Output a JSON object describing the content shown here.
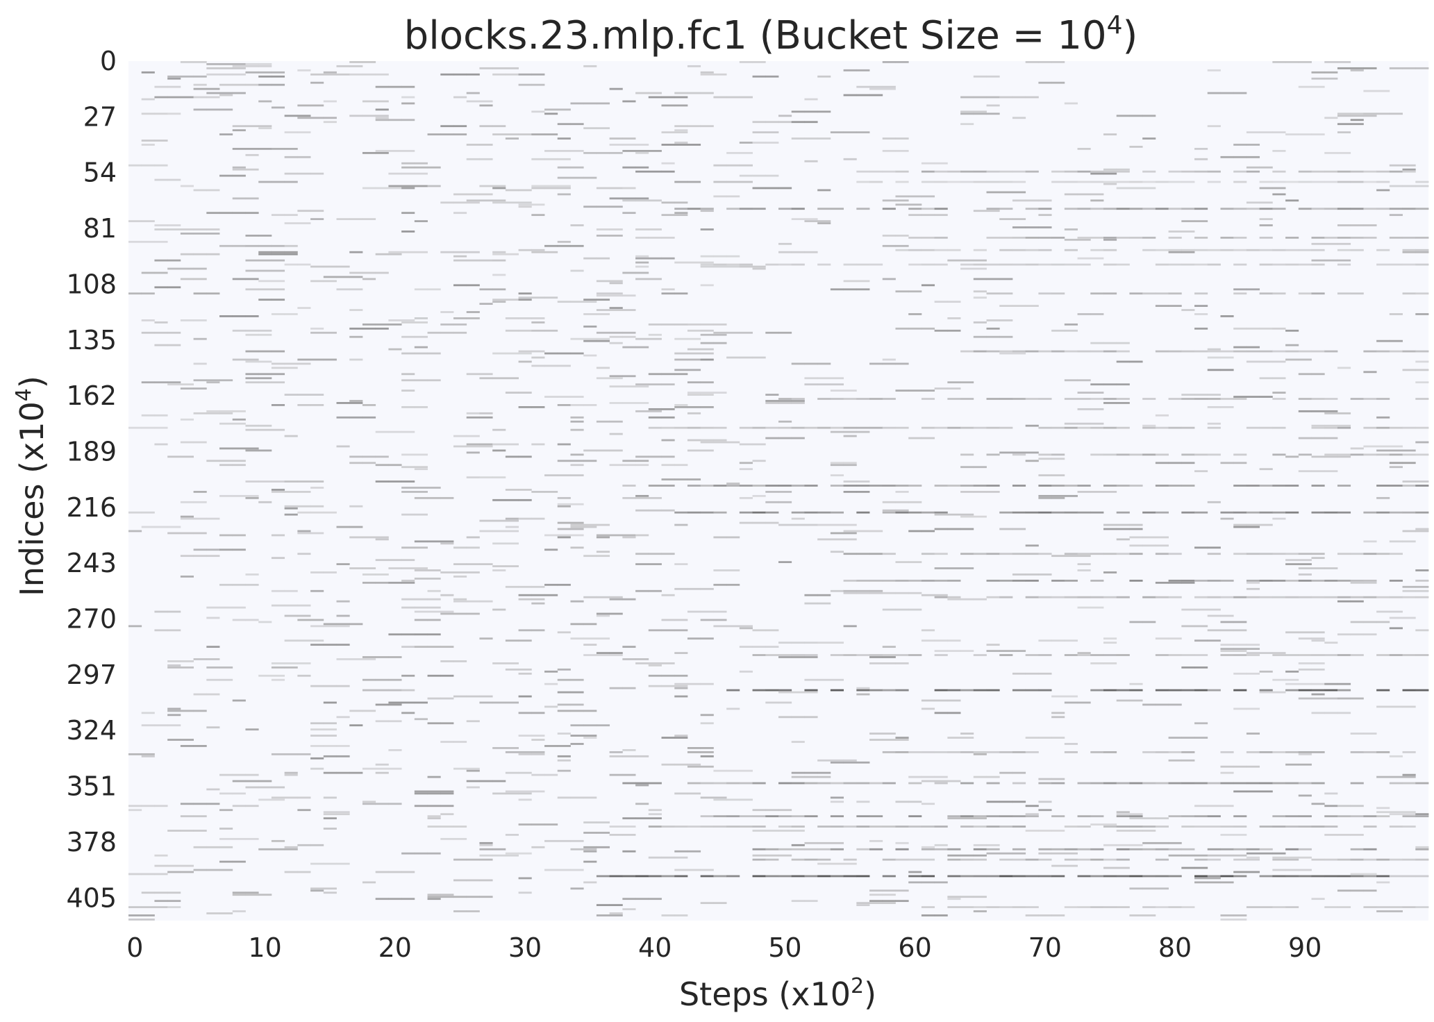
{
  "chart_data": {
    "type": "heatmap",
    "title": {
      "text": "blocks.23.mlp.fc1 (Bucket Size = 10",
      "superscript": "4",
      "suffix": ")"
    },
    "xlabel": {
      "text": "Steps (x10",
      "superscript": "2",
      "suffix": ")"
    },
    "ylabel": {
      "text": "Indices (x10",
      "superscript": "4",
      "suffix": ")"
    },
    "x_ticks": [
      "0",
      "10",
      "20",
      "30",
      "40",
      "50",
      "60",
      "70",
      "80",
      "90"
    ],
    "y_ticks": [
      "0",
      "27",
      "54",
      "81",
      "108",
      "135",
      "162",
      "189",
      "216",
      "243",
      "270",
      "297",
      "324",
      "351",
      "378",
      "405"
    ],
    "x_range": [
      0,
      100
    ],
    "y_range": [
      0,
      416
    ],
    "background_color": "#f7f8fd",
    "colormap": [
      "#f7f8fd",
      "#c9c9cc",
      "#3a3a3a"
    ],
    "recurring_rows": [
      {
        "index": 53,
        "intensity": 0.6,
        "from_step": 58
      },
      {
        "index": 58,
        "intensity": 0.4,
        "from_step": 56
      },
      {
        "index": 71,
        "intensity": 0.7,
        "from_step": 42
      },
      {
        "index": 85,
        "intensity": 0.6,
        "from_step": 60
      },
      {
        "index": 91,
        "intensity": 0.5,
        "from_step": 58
      },
      {
        "index": 98,
        "intensity": 0.5,
        "from_step": 44
      },
      {
        "index": 112,
        "intensity": 0.6,
        "from_step": 66
      },
      {
        "index": 140,
        "intensity": 0.6,
        "from_step": 64
      },
      {
        "index": 163,
        "intensity": 0.6,
        "from_step": 50
      },
      {
        "index": 177,
        "intensity": 0.6,
        "from_step": 40
      },
      {
        "index": 190,
        "intensity": 0.6,
        "from_step": 64
      },
      {
        "index": 205,
        "intensity": 0.7,
        "from_step": 40
      },
      {
        "index": 218,
        "intensity": 0.8,
        "from_step": 42
      },
      {
        "index": 238,
        "intensity": 0.6,
        "from_step": 56
      },
      {
        "index": 251,
        "intensity": 0.7,
        "from_step": 54
      },
      {
        "index": 259,
        "intensity": 0.6,
        "from_step": 62
      },
      {
        "index": 287,
        "intensity": 0.6,
        "from_step": 48
      },
      {
        "index": 304,
        "intensity": 0.9,
        "from_step": 46
      },
      {
        "index": 334,
        "intensity": 0.6,
        "from_step": 58
      },
      {
        "index": 349,
        "intensity": 0.7,
        "from_step": 38
      },
      {
        "index": 365,
        "intensity": 0.7,
        "from_step": 44
      },
      {
        "index": 370,
        "intensity": 0.6,
        "from_step": 40
      },
      {
        "index": 381,
        "intensity": 0.7,
        "from_step": 48
      },
      {
        "index": 386,
        "intensity": 0.6,
        "from_step": 48
      },
      {
        "index": 394,
        "intensity": 0.9,
        "from_step": 36
      },
      {
        "index": 409,
        "intensity": 0.5,
        "from_step": 60
      }
    ],
    "scatter_density": 0.028,
    "grid": false,
    "legend": "none"
  }
}
